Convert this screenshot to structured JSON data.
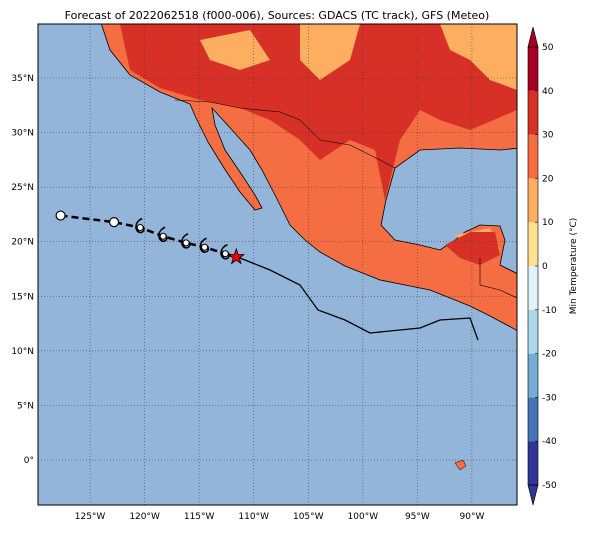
{
  "map": {
    "title": "Forecast of 2022062518 (f000-006), Sources: GDACS (TC track), GFS (Meteo)",
    "lonlim": [
      -129.77,
      -85.87
    ],
    "latlim": [
      -4.12,
      39.95
    ],
    "lon_ticks": [
      {
        "value": -125,
        "label": "125°W"
      },
      {
        "value": -120,
        "label": "120°W"
      },
      {
        "value": -115,
        "label": "115°W"
      },
      {
        "value": -110,
        "label": "110°W"
      },
      {
        "value": -105,
        "label": "105°W"
      },
      {
        "value": -100,
        "label": "100°W"
      },
      {
        "value": -95,
        "label": "95°W"
      },
      {
        "value": -90,
        "label": "90°W"
      }
    ],
    "lat_ticks": [
      {
        "value": 35,
        "label": "35°N"
      },
      {
        "value": 30,
        "label": "30°N"
      },
      {
        "value": 25,
        "label": "25°N"
      },
      {
        "value": 20,
        "label": "20°N"
      },
      {
        "value": 15,
        "label": "15°N"
      },
      {
        "value": 10,
        "label": "10°N"
      },
      {
        "value": 5,
        "label": "5°N"
      },
      {
        "value": 0,
        "label": "0°"
      }
    ],
    "grid": true,
    "track": {
      "lon": [
        -127.7,
        -122.8,
        -120.4,
        -118.3,
        -116.2,
        -114.5,
        -112.6
      ],
      "lat": [
        22.4,
        21.8,
        21.3,
        20.5,
        19.9,
        19.5,
        18.9
      ]
    },
    "current_position": {
      "lon": -111.6,
      "lat": 18.6
    },
    "colorbar": {
      "label": "Min Temperature (°C)",
      "lim": [
        -50,
        50
      ],
      "ticks": [
        -50,
        -40,
        -30,
        -20,
        -10,
        0,
        10,
        20,
        30,
        40,
        50
      ],
      "colors": [
        "#313695",
        "#4575b4",
        "#74add1",
        "#abd9e9",
        "#e0f3f8",
        "#fee090",
        "#fdae61",
        "#f46d43",
        "#d73027",
        "#a50026"
      ]
    }
  }
}
